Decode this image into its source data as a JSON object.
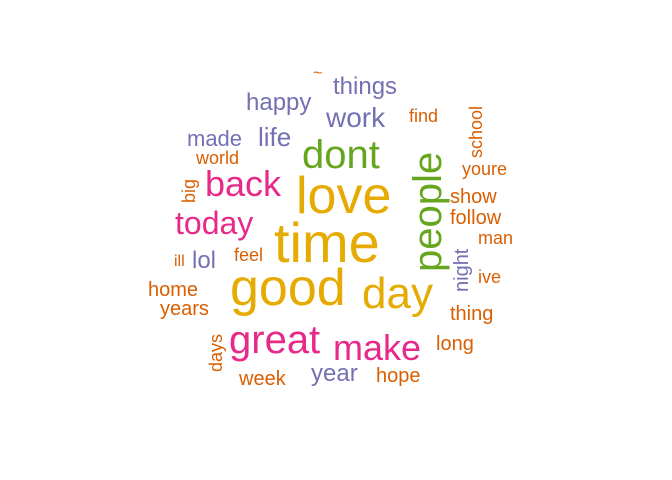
{
  "palette": {
    "orange": "#d95f02",
    "purple": "#7570b3",
    "pink": "#e7298a",
    "green": "#66a61e",
    "gold": "#e6ab02"
  },
  "words": [
    {
      "text": "time",
      "color": "gold"
    },
    {
      "text": "good",
      "color": "gold"
    },
    {
      "text": "love",
      "color": "gold"
    },
    {
      "text": "day",
      "color": "gold"
    },
    {
      "text": "people",
      "color": "green"
    },
    {
      "text": "dont",
      "color": "green"
    },
    {
      "text": "great",
      "color": "pink"
    },
    {
      "text": "make",
      "color": "pink"
    },
    {
      "text": "back",
      "color": "pink"
    },
    {
      "text": "today",
      "color": "pink"
    },
    {
      "text": "work",
      "color": "purple"
    },
    {
      "text": "things",
      "color": "purple"
    },
    {
      "text": "happy",
      "color": "purple"
    },
    {
      "text": "life",
      "color": "purple"
    },
    {
      "text": "made",
      "color": "purple"
    },
    {
      "text": "lol",
      "color": "purple"
    },
    {
      "text": "year",
      "color": "purple"
    },
    {
      "text": "night",
      "color": "purple"
    },
    {
      "text": "find",
      "color": "orange"
    },
    {
      "text": "school",
      "color": "orange"
    },
    {
      "text": "world",
      "color": "orange"
    },
    {
      "text": "youre",
      "color": "orange"
    },
    {
      "text": "big",
      "color": "orange"
    },
    {
      "text": "show",
      "color": "orange"
    },
    {
      "text": "follow",
      "color": "orange"
    },
    {
      "text": "man",
      "color": "orange"
    },
    {
      "text": "ill",
      "color": "orange"
    },
    {
      "text": "feel",
      "color": "orange"
    },
    {
      "text": "ive",
      "color": "orange"
    },
    {
      "text": "home",
      "color": "orange"
    },
    {
      "text": "years",
      "color": "orange"
    },
    {
      "text": "thing",
      "color": "orange"
    },
    {
      "text": "long",
      "color": "orange"
    },
    {
      "text": "days",
      "color": "orange"
    },
    {
      "text": "week",
      "color": "orange"
    },
    {
      "text": "hope",
      "color": "orange"
    },
    {
      "text": "~",
      "color": "orange"
    }
  ]
}
